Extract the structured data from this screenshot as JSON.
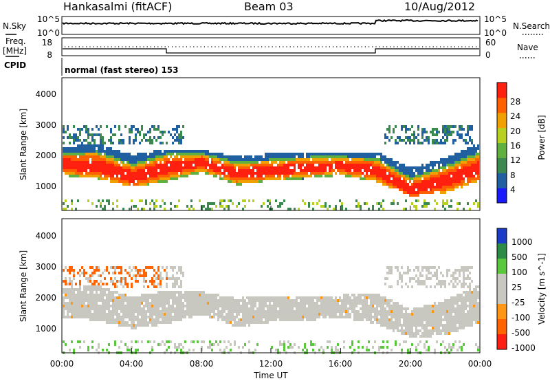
{
  "header": {
    "station": "Hankasalmi (fitACF)",
    "beam": "Beam 03",
    "date": "10/Aug/2012"
  },
  "panels": {
    "nsky": {
      "label": "N.Sky",
      "right_label": "N.Search",
      "ticks_left": [
        "10^5",
        "10^0"
      ],
      "ticks_right": [
        "10^5",
        "10^0"
      ]
    },
    "freq": {
      "label_line1": "Freq.",
      "label_line2": "[MHz]",
      "ticks_left": [
        "18",
        "8"
      ],
      "right_label": "Nave",
      "ticks_right": [
        "60",
        "0"
      ]
    },
    "cpid": {
      "label": "CPID",
      "text": "normal (fast stereo) 153"
    }
  },
  "chart_data": [
    {
      "type": "heatmap",
      "name": "power",
      "xlabel": "Time UT",
      "ylabel": "Slant Range [km]",
      "ylim": [
        300,
        4500
      ],
      "yticks": [
        "1000",
        "2000",
        "3000",
        "4000"
      ],
      "xlim": [
        0,
        24
      ],
      "xticks": [
        "00:00",
        "04:00",
        "08:00",
        "12:00",
        "16:00",
        "20:00",
        "00:00"
      ],
      "colorbar": {
        "label": "Power [dB]",
        "ticks": [
          "4",
          "8",
          "12",
          "16",
          "20",
          "24",
          "28"
        ],
        "range": [
          0,
          30
        ],
        "colors": [
          "#1a1aff",
          "#2060a0",
          "#3a8a50",
          "#60b040",
          "#b8d020",
          "#f0a000",
          "#ff6000",
          "#ff2010"
        ]
      },
      "echo_bands": [
        {
          "t": 0,
          "lo": 1450,
          "hi": 2350,
          "core": 1800
        },
        {
          "t": 2,
          "lo": 1350,
          "hi": 2450,
          "core": 1750
        },
        {
          "t": 4,
          "lo": 1100,
          "hi": 2100,
          "core": 1400
        },
        {
          "t": 6,
          "lo": 1250,
          "hi": 2300,
          "core": 1700
        },
        {
          "t": 8,
          "lo": 1550,
          "hi": 2250,
          "core": 1850
        },
        {
          "t": 10,
          "lo": 1150,
          "hi": 2050,
          "core": 1500
        },
        {
          "t": 12,
          "lo": 1300,
          "hi": 2150,
          "core": 1600
        },
        {
          "t": 14,
          "lo": 1350,
          "hi": 2150,
          "core": 1700
        },
        {
          "t": 16,
          "lo": 1450,
          "hi": 2150,
          "core": 1750
        },
        {
          "t": 18,
          "lo": 1250,
          "hi": 2200,
          "core": 1600
        },
        {
          "t": 20,
          "lo": 800,
          "hi": 1700,
          "core": 1000
        },
        {
          "t": 22,
          "lo": 900,
          "hi": 2000,
          "core": 1300
        },
        {
          "t": 24,
          "lo": 1300,
          "hi": 2500,
          "core": 1700
        }
      ]
    },
    {
      "type": "heatmap",
      "name": "velocity",
      "xlabel": "Time UT",
      "ylabel": "Slant Range [km]",
      "ylim": [
        300,
        4500
      ],
      "yticks": [
        "1000",
        "2000",
        "3000",
        "4000"
      ],
      "xlim": [
        0,
        24
      ],
      "xticks": [
        "00:00",
        "04:00",
        "08:00",
        "12:00",
        "16:00",
        "20:00",
        "00:00"
      ],
      "colorbar": {
        "label": "Velocity [m s^-1]",
        "ticks": [
          "1000",
          "500",
          "100",
          "25",
          "-25",
          "-100",
          "-500",
          "-1000"
        ],
        "colors": [
          "#1a3cc8",
          "#2c8c46",
          "#5ac83c",
          "#c8c8c0",
          "#c8c8c0",
          "#ff9614",
          "#ff6400",
          "#ff1e14"
        ]
      }
    }
  ],
  "footer": {
    "xlabel": "Time UT"
  }
}
